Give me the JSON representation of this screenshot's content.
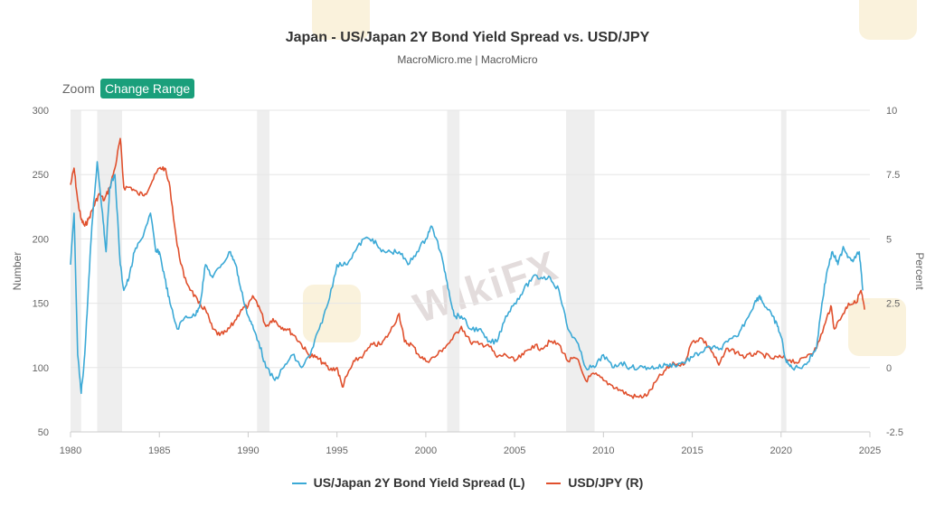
{
  "header": {
    "title": "Japan - US/Japan 2Y Bond Yield Spread vs. USD/JPY",
    "subtitle": "MacroMicro.me | MacroMicro"
  },
  "controls": {
    "zoom_label": "Zoom",
    "range_button": "Change Range"
  },
  "watermark": {
    "text": "WikiFX"
  },
  "colors": {
    "spread": "#3ba9d6",
    "usdjpy": "#e0502d",
    "recession": "#eeeeee",
    "grid": "#e6e6e6"
  },
  "chart_data": {
    "type": "line",
    "title": "Japan - US/Japan 2Y Bond Yield Spread vs. USD/JPY",
    "subtitle": "MacroMicro.me | MacroMicro",
    "xlim": [
      1980,
      2025
    ],
    "x_ticks": [
      "1980",
      "1985",
      "1990",
      "1995",
      "2000",
      "2005",
      "2010",
      "2015",
      "2020",
      "2025"
    ],
    "left_axis": {
      "label": "Number",
      "lim": [
        50,
        300
      ],
      "ticks": [
        "50",
        "100",
        "150",
        "200",
        "250",
        "300"
      ]
    },
    "right_axis": {
      "label": "Percent",
      "lim": [
        -2.5,
        10
      ],
      "ticks": [
        "-2.5",
        "0",
        "2.5",
        "5",
        "7.5",
        "10"
      ]
    },
    "recession_bands": [
      [
        1980.0,
        1980.6
      ],
      [
        1981.5,
        1982.9
      ],
      [
        1990.5,
        1991.2
      ],
      [
        2001.2,
        2001.9
      ],
      [
        2007.9,
        2009.5
      ],
      [
        2020.0,
        2020.3
      ]
    ],
    "legend": [
      "US/Japan 2Y Bond Yield Spread (L)",
      "USD/JPY (R)"
    ],
    "series": [
      {
        "name": "US/Japan 2Y Bond Yield Spread (L)",
        "axis": "left",
        "note": "plotted against the right (Percent) scale",
        "points": [
          [
            1980.0,
            4.0
          ],
          [
            1980.2,
            6.0
          ],
          [
            1980.4,
            0.5
          ],
          [
            1980.6,
            -1.0
          ],
          [
            1980.8,
            0.5
          ],
          [
            1981.0,
            3.0
          ],
          [
            1981.2,
            5.5
          ],
          [
            1981.5,
            8.0
          ],
          [
            1981.8,
            6.0
          ],
          [
            1982.0,
            4.5
          ],
          [
            1982.2,
            7.0
          ],
          [
            1982.5,
            7.5
          ],
          [
            1982.8,
            4.0
          ],
          [
            1983.0,
            3.0
          ],
          [
            1983.3,
            3.5
          ],
          [
            1983.6,
            4.5
          ],
          [
            1984.0,
            5.0
          ],
          [
            1984.5,
            6.0
          ],
          [
            1984.8,
            4.5
          ],
          [
            1985.0,
            4.5
          ],
          [
            1985.3,
            3.5
          ],
          [
            1985.6,
            2.5
          ],
          [
            1986.0,
            1.5
          ],
          [
            1986.5,
            2.0
          ],
          [
            1987.0,
            2.0
          ],
          [
            1987.3,
            2.5
          ],
          [
            1987.6,
            4.0
          ],
          [
            1988.0,
            3.5
          ],
          [
            1988.5,
            4.0
          ],
          [
            1989.0,
            4.5
          ],
          [
            1989.3,
            4.0
          ],
          [
            1989.6,
            3.0
          ],
          [
            1990.0,
            2.0
          ],
          [
            1990.3,
            1.5
          ],
          [
            1990.6,
            1.0
          ],
          [
            1991.0,
            0.0
          ],
          [
            1991.5,
            -0.5
          ],
          [
            1992.0,
            0.0
          ],
          [
            1992.5,
            0.5
          ],
          [
            1993.0,
            0.0
          ],
          [
            1993.5,
            0.5
          ],
          [
            1994.0,
            1.5
          ],
          [
            1994.5,
            2.5
          ],
          [
            1995.0,
            4.0
          ],
          [
            1995.5,
            4.0
          ],
          [
            1996.0,
            4.5
          ],
          [
            1996.5,
            5.0
          ],
          [
            1997.0,
            5.0
          ],
          [
            1997.5,
            4.5
          ],
          [
            1998.0,
            4.5
          ],
          [
            1998.5,
            4.5
          ],
          [
            1999.0,
            4.0
          ],
          [
            1999.5,
            4.5
          ],
          [
            2000.0,
            5.0
          ],
          [
            2000.3,
            5.5
          ],
          [
            2000.6,
            5.0
          ],
          [
            2001.0,
            4.0
          ],
          [
            2001.3,
            3.0
          ],
          [
            2001.6,
            2.0
          ],
          [
            2002.0,
            2.0
          ],
          [
            2002.5,
            1.5
          ],
          [
            2003.0,
            1.5
          ],
          [
            2003.5,
            1.0
          ],
          [
            2004.0,
            1.0
          ],
          [
            2004.5,
            2.0
          ],
          [
            2005.0,
            2.5
          ],
          [
            2005.5,
            3.0
          ],
          [
            2006.0,
            3.5
          ],
          [
            2006.5,
            3.5
          ],
          [
            2007.0,
            3.5
          ],
          [
            2007.5,
            3.0
          ],
          [
            2008.0,
            1.5
          ],
          [
            2008.5,
            1.0
          ],
          [
            2009.0,
            0.0
          ],
          [
            2009.5,
            0.0
          ],
          [
            2010.0,
            0.5
          ],
          [
            2010.5,
            0.0
          ],
          [
            2011.0,
            0.2
          ],
          [
            2011.5,
            0.0
          ],
          [
            2012.0,
            0.0
          ],
          [
            2012.5,
            0.0
          ],
          [
            2013.0,
            0.0
          ],
          [
            2013.5,
            0.1
          ],
          [
            2014.0,
            0.1
          ],
          [
            2014.5,
            0.2
          ],
          [
            2015.0,
            0.4
          ],
          [
            2015.5,
            0.6
          ],
          [
            2016.0,
            0.8
          ],
          [
            2016.5,
            0.7
          ],
          [
            2017.0,
            1.0
          ],
          [
            2017.5,
            1.2
          ],
          [
            2018.0,
            1.8
          ],
          [
            2018.5,
            2.5
          ],
          [
            2018.8,
            2.8
          ],
          [
            2019.0,
            2.5
          ],
          [
            2019.5,
            2.0
          ],
          [
            2019.8,
            1.6
          ],
          [
            2020.0,
            1.2
          ],
          [
            2020.3,
            0.2
          ],
          [
            2020.6,
            0.0
          ],
          [
            2021.0,
            0.0
          ],
          [
            2021.5,
            0.2
          ],
          [
            2022.0,
            0.8
          ],
          [
            2022.3,
            2.5
          ],
          [
            2022.6,
            3.8
          ],
          [
            2022.9,
            4.5
          ],
          [
            2023.2,
            4.0
          ],
          [
            2023.5,
            4.7
          ],
          [
            2023.8,
            4.3
          ],
          [
            2024.1,
            4.2
          ],
          [
            2024.4,
            4.5
          ],
          [
            2024.6,
            3.0
          ]
        ]
      },
      {
        "name": "USD/JPY (R)",
        "axis": "right",
        "points": [
          [
            1980.0,
            242
          ],
          [
            1980.2,
            255
          ],
          [
            1980.4,
            230
          ],
          [
            1980.6,
            215
          ],
          [
            1980.8,
            210
          ],
          [
            1981.0,
            215
          ],
          [
            1981.3,
            225
          ],
          [
            1981.6,
            235
          ],
          [
            1981.9,
            230
          ],
          [
            1982.2,
            240
          ],
          [
            1982.5,
            255
          ],
          [
            1982.8,
            278
          ],
          [
            1983.0,
            240
          ],
          [
            1983.4,
            240
          ],
          [
            1983.8,
            235
          ],
          [
            1984.2,
            235
          ],
          [
            1984.6,
            245
          ],
          [
            1985.0,
            255
          ],
          [
            1985.3,
            255
          ],
          [
            1985.6,
            240
          ],
          [
            1986.0,
            195
          ],
          [
            1986.4,
            170
          ],
          [
            1986.8,
            160
          ],
          [
            1987.2,
            150
          ],
          [
            1987.6,
            145
          ],
          [
            1988.0,
            130
          ],
          [
            1988.4,
            125
          ],
          [
            1988.8,
            128
          ],
          [
            1989.2,
            135
          ],
          [
            1989.6,
            145
          ],
          [
            1990.0,
            148
          ],
          [
            1990.3,
            155
          ],
          [
            1990.6,
            148
          ],
          [
            1991.0,
            132
          ],
          [
            1991.4,
            138
          ],
          [
            1991.8,
            132
          ],
          [
            1992.2,
            130
          ],
          [
            1992.6,
            125
          ],
          [
            1993.0,
            118
          ],
          [
            1993.4,
            110
          ],
          [
            1993.8,
            108
          ],
          [
            1994.2,
            104
          ],
          [
            1994.6,
            98
          ],
          [
            1995.0,
            100
          ],
          [
            1995.3,
            85
          ],
          [
            1995.6,
            95
          ],
          [
            1996.0,
            105
          ],
          [
            1996.5,
            110
          ],
          [
            1997.0,
            118
          ],
          [
            1997.5,
            118
          ],
          [
            1998.0,
            128
          ],
          [
            1998.5,
            142
          ],
          [
            1998.8,
            120
          ],
          [
            1999.2,
            118
          ],
          [
            1999.6,
            110
          ],
          [
            2000.0,
            105
          ],
          [
            2000.5,
            108
          ],
          [
            2001.0,
            115
          ],
          [
            2001.5,
            122
          ],
          [
            2002.0,
            132
          ],
          [
            2002.5,
            120
          ],
          [
            2003.0,
            118
          ],
          [
            2003.5,
            118
          ],
          [
            2004.0,
            108
          ],
          [
            2004.5,
            110
          ],
          [
            2005.0,
            105
          ],
          [
            2005.5,
            110
          ],
          [
            2006.0,
            117
          ],
          [
            2006.5,
            115
          ],
          [
            2007.0,
            120
          ],
          [
            2007.5,
            118
          ],
          [
            2008.0,
            105
          ],
          [
            2008.5,
            107
          ],
          [
            2009.0,
            90
          ],
          [
            2009.5,
            95
          ],
          [
            2010.0,
            90
          ],
          [
            2010.5,
            86
          ],
          [
            2011.0,
            82
          ],
          [
            2011.5,
            78
          ],
          [
            2012.0,
            77
          ],
          [
            2012.5,
            79
          ],
          [
            2013.0,
            90
          ],
          [
            2013.5,
            98
          ],
          [
            2014.0,
            103
          ],
          [
            2014.5,
            102
          ],
          [
            2015.0,
            120
          ],
          [
            2015.5,
            123
          ],
          [
            2016.0,
            115
          ],
          [
            2016.5,
            102
          ],
          [
            2017.0,
            115
          ],
          [
            2017.5,
            112
          ],
          [
            2018.0,
            108
          ],
          [
            2018.5,
            111
          ],
          [
            2019.0,
            110
          ],
          [
            2019.5,
            107
          ],
          [
            2020.0,
            108
          ],
          [
            2020.5,
            106
          ],
          [
            2021.0,
            104
          ],
          [
            2021.5,
            110
          ],
          [
            2022.0,
            115
          ],
          [
            2022.5,
            135
          ],
          [
            2022.8,
            148
          ],
          [
            2023.0,
            130
          ],
          [
            2023.5,
            142
          ],
          [
            2023.8,
            150
          ],
          [
            2024.2,
            150
          ],
          [
            2024.5,
            160
          ],
          [
            2024.7,
            145
          ]
        ]
      }
    ]
  }
}
